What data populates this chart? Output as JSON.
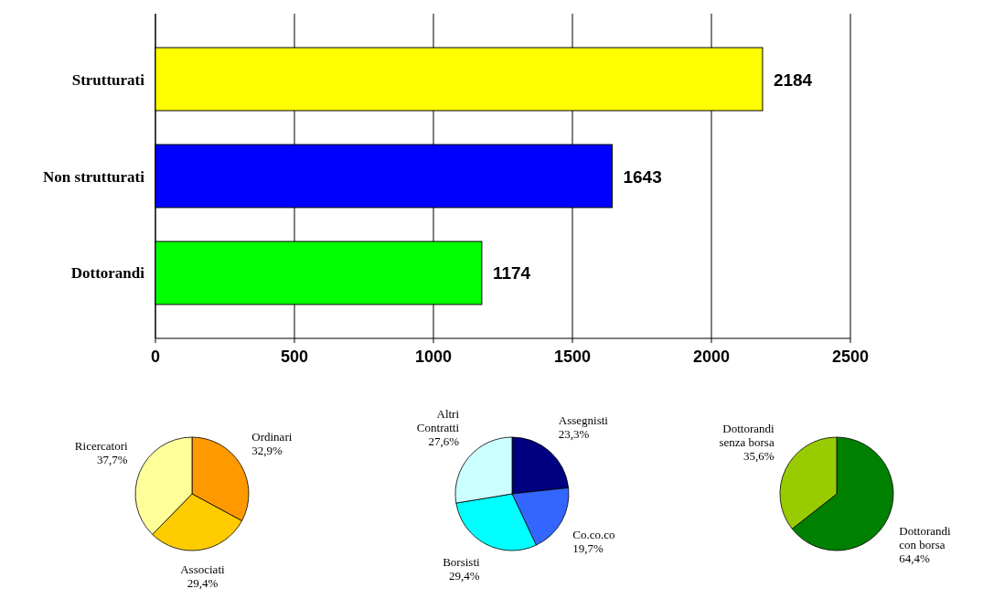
{
  "chart_data": [
    {
      "type": "bar",
      "orientation": "horizontal",
      "categories": [
        "Strutturati",
        "Non strutturati",
        "Dottorandi"
      ],
      "values": [
        2184,
        1643,
        1174
      ],
      "colors": [
        "#ffff00",
        "#0000ff",
        "#00ff00"
      ],
      "xlim": [
        0,
        2500
      ],
      "xticks": [
        0,
        500,
        1000,
        1500,
        2000,
        2500
      ],
      "grid": "x",
      "data_labels": true
    },
    {
      "type": "pie",
      "categories": [
        "Ordinari",
        "Associati",
        "Ricercatori"
      ],
      "values": [
        32.9,
        29.4,
        37.7
      ],
      "colors": [
        "#ff9900",
        "#ffcc00",
        "#ffff99"
      ],
      "value_labels": [
        "32,9%",
        "29,4%",
        "37,7%"
      ]
    },
    {
      "type": "pie",
      "categories": [
        "Assegnisti",
        "Co.co.co",
        "Borsisti",
        "Altri Contratti"
      ],
      "values": [
        23.3,
        19.7,
        29.4,
        27.6
      ],
      "colors": [
        "#000080",
        "#3366ff",
        "#00ffff",
        "#ccffff"
      ],
      "value_labels": [
        "23,3%",
        "19,7%",
        "29,4%",
        "27,6%"
      ]
    },
    {
      "type": "pie",
      "categories": [
        "Dottorandi con borsa",
        "Dottorandi senza borsa"
      ],
      "values": [
        64.4,
        35.6
      ],
      "colors": [
        "#008000",
        "#99cc00"
      ],
      "value_labels": [
        "64,4%",
        "35,6%"
      ]
    }
  ]
}
